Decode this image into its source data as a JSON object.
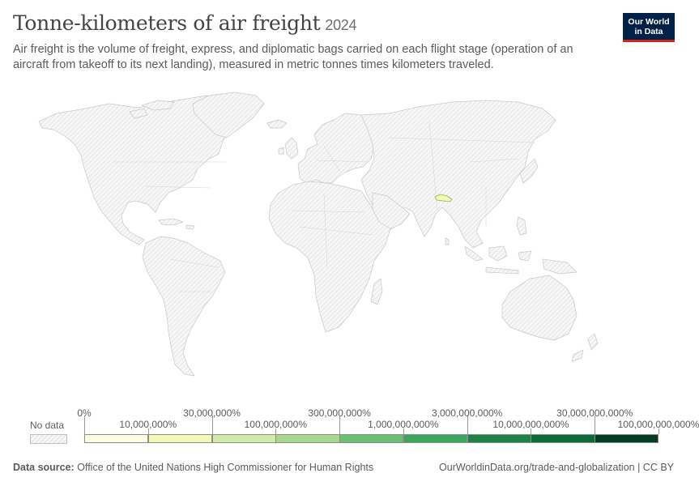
{
  "header": {
    "title": "Tonne-kilometers of air freight",
    "year": "2024",
    "subtitle": "Air freight is the volume of freight, express, and diplomatic bags carried on each flight stage (operation of an aircraft from takeoff to its next landing), measured in metric tonnes times kilometers traveled."
  },
  "logo": {
    "line1": "Our World",
    "line2": "in Data"
  },
  "legend": {
    "no_data_label": "No data",
    "bins": [
      {
        "color": "#fefee2"
      },
      {
        "color": "#f3f9b4"
      },
      {
        "color": "#d2eaa8"
      },
      {
        "color": "#a6d98c"
      },
      {
        "color": "#6cc071"
      },
      {
        "color": "#3ca65b"
      },
      {
        "color": "#1d8345"
      },
      {
        "color": "#0b6c37"
      },
      {
        "color": "#023d1f"
      }
    ],
    "tick_labels": [
      "0%",
      "10,000,000%",
      "30,000,000%",
      "100,000,000%",
      "300,000,000%",
      "1,000,000,000%",
      "3,000,000,000%",
      "10,000,000,000%",
      "30,000,000,000%",
      "100,000,000,000%"
    ]
  },
  "map": {
    "no_data_color": "#f2f2f2",
    "highlighted_region": {
      "name": "Nepal",
      "color": "#f3f9b4"
    }
  },
  "footer": {
    "source_label": "Data source:",
    "source": "Office of the United Nations High Commissioner for Human Rights",
    "url_license": "OurWorldinData.org/trade-and-globalization | CC BY"
  }
}
